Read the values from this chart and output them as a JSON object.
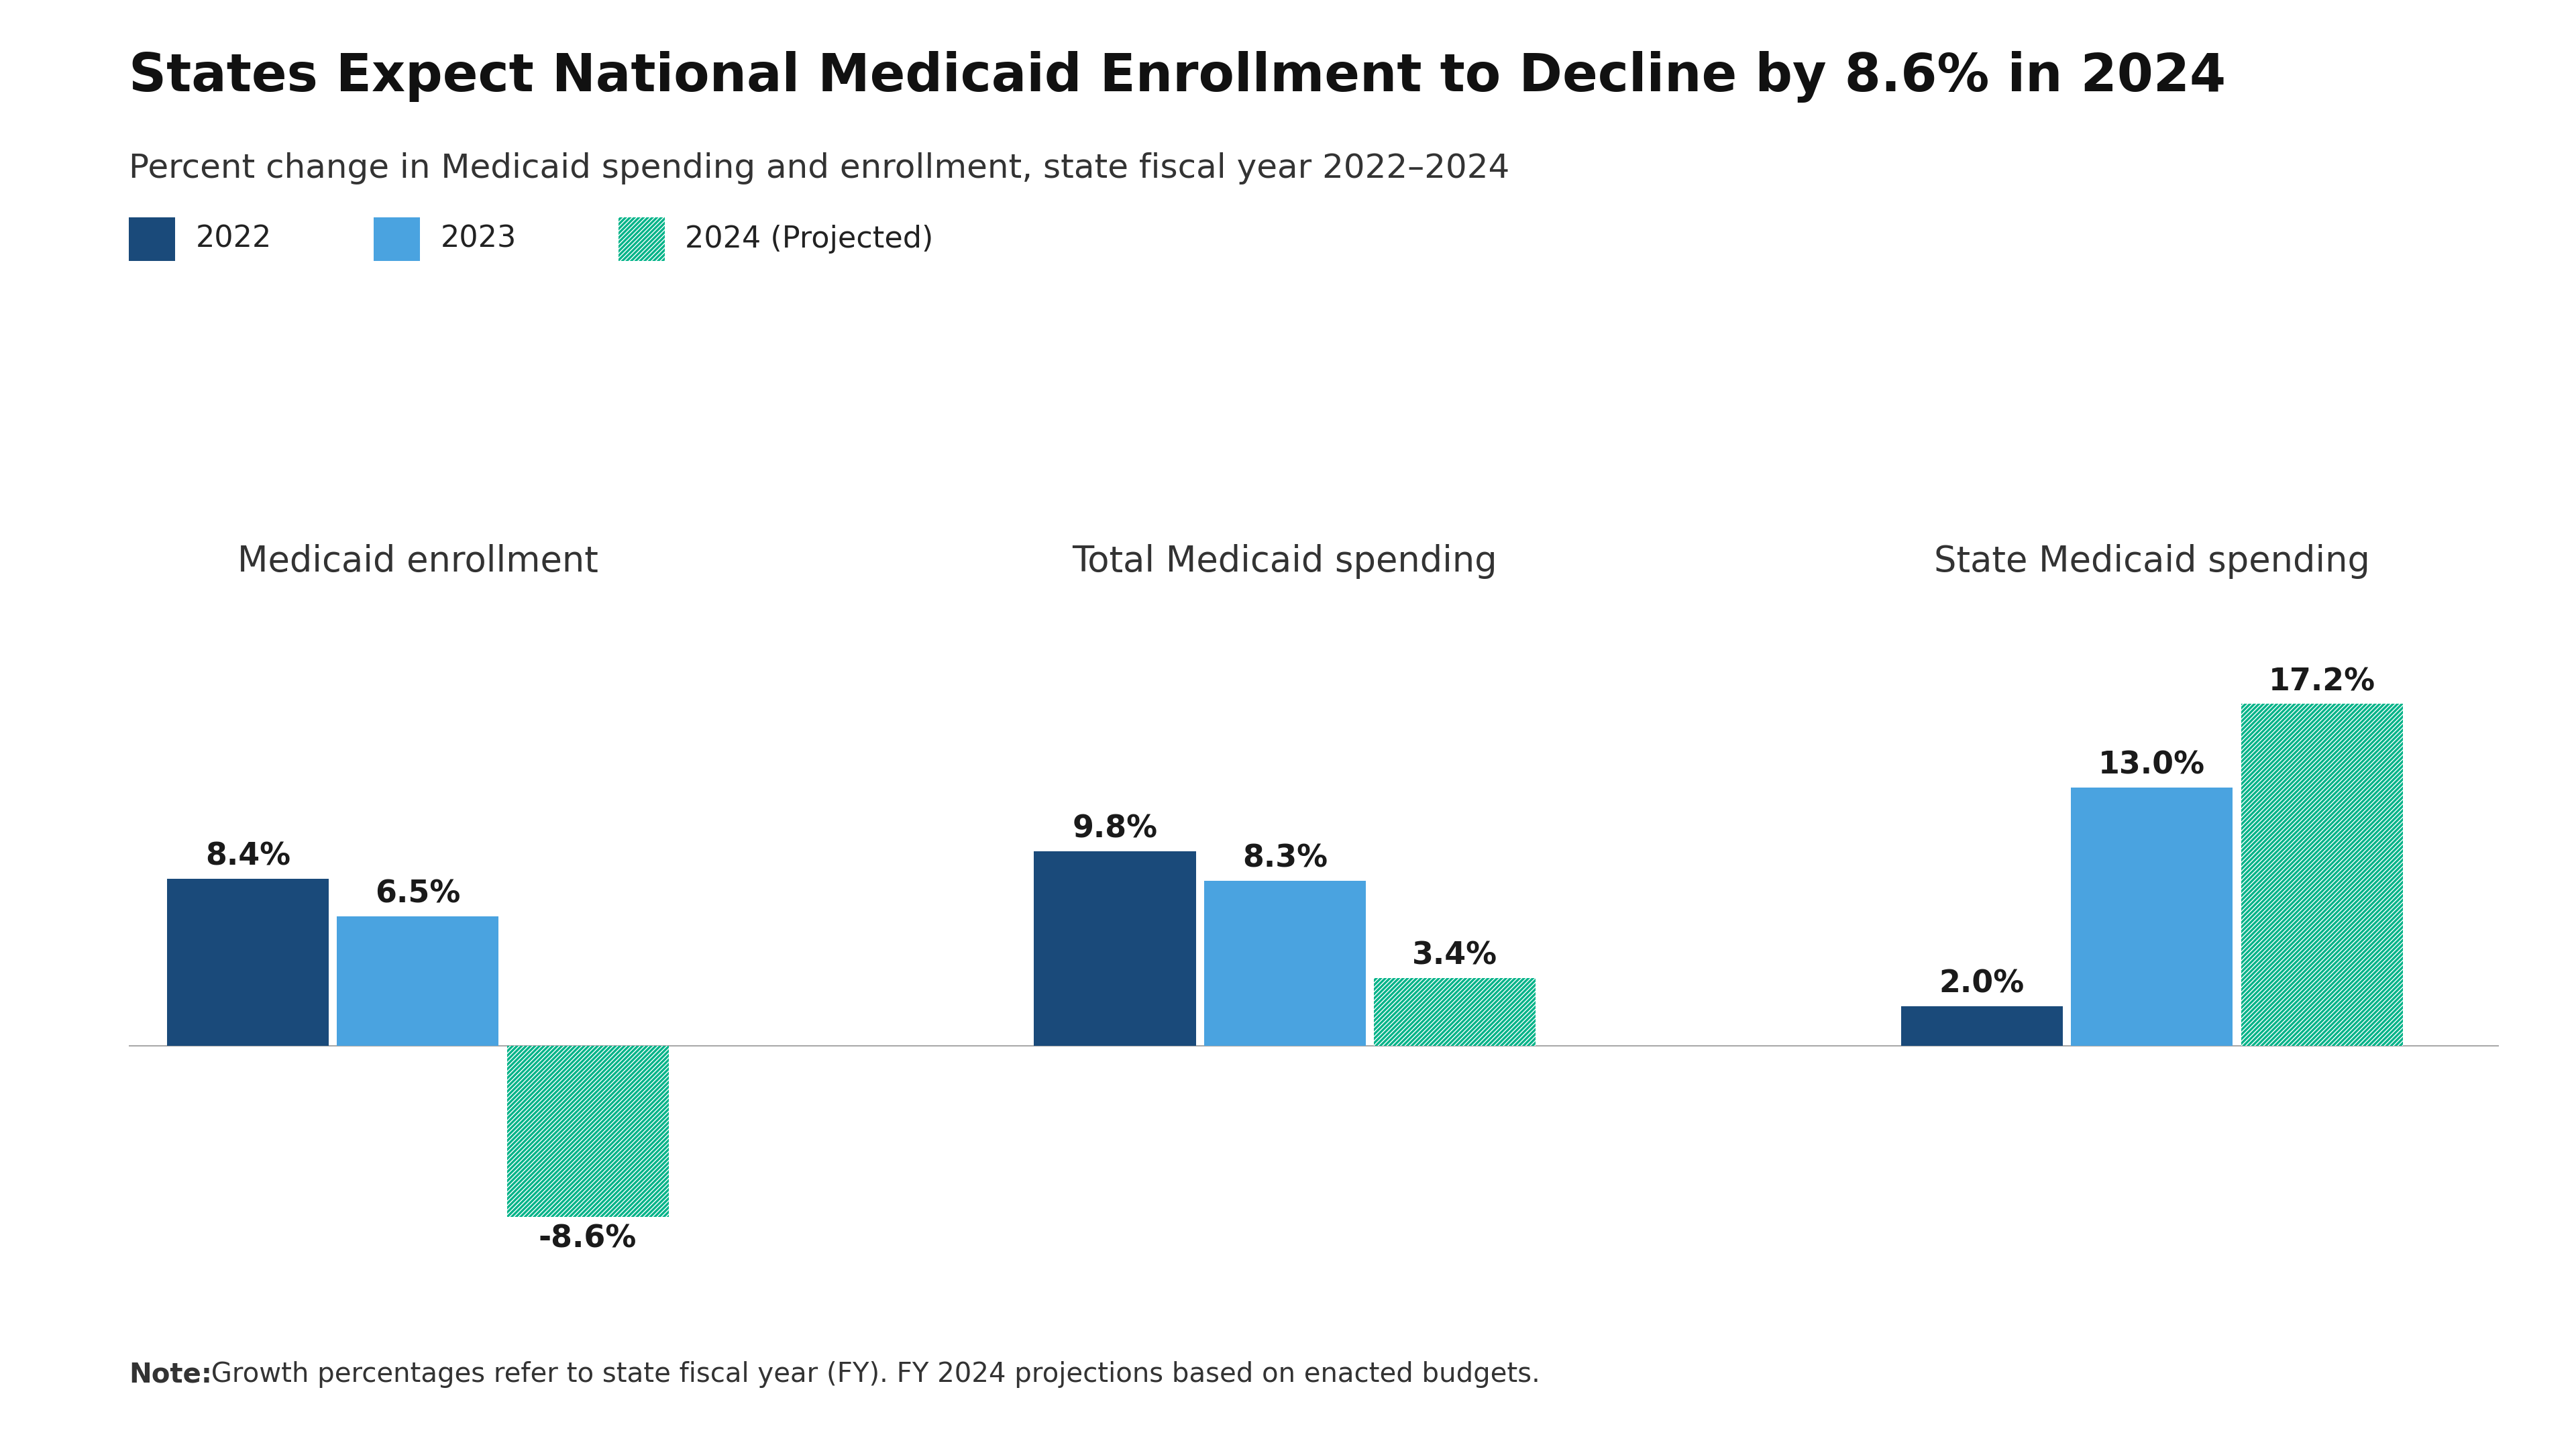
{
  "title": "States Expect National Medicaid Enrollment to Decline by 8.6% in 2024",
  "subtitle": "Percent change in Medicaid spending and enrollment, state fiscal year 2022–2024",
  "note_bold": "Note:",
  "note_rest": " Growth percentages refer to state fiscal year (FY). FY 2024 projections based on enacted budgets.",
  "legend_labels": [
    "2022",
    "2023",
    "2024 (Projected)"
  ],
  "group_titles": [
    "Medicaid enrollment",
    "Total Medicaid spending",
    "State Medicaid spending"
  ],
  "groups": [
    {
      "2022": 8.4,
      "2023": 6.5,
      "2024": -8.6
    },
    {
      "2022": 9.8,
      "2023": 8.3,
      "2024": 3.4
    },
    {
      "2022": 2.0,
      "2023": 13.0,
      "2024": 17.2
    }
  ],
  "bar_colors": {
    "2022": "#1a4a7a",
    "2023": "#4aa3e0",
    "2024_hatch_fg": "#00b388",
    "2024_hatch_bg": "#ffffff"
  },
  "background_color": "#ffffff",
  "title_color": "#111111",
  "subtitle_color": "#333333",
  "label_color": "#222222",
  "note_color": "#333333",
  "group_title_color": "#333333",
  "bar_value_color": "#1a1a1a",
  "axis_line_color": "#aaaaaa",
  "ylim": [
    -13,
    22
  ],
  "title_fontsize": 56,
  "subtitle_fontsize": 36,
  "legend_fontsize": 32,
  "group_title_fontsize": 38,
  "bar_value_fontsize": 33,
  "note_fontsize": 29,
  "bar_width": 0.28
}
